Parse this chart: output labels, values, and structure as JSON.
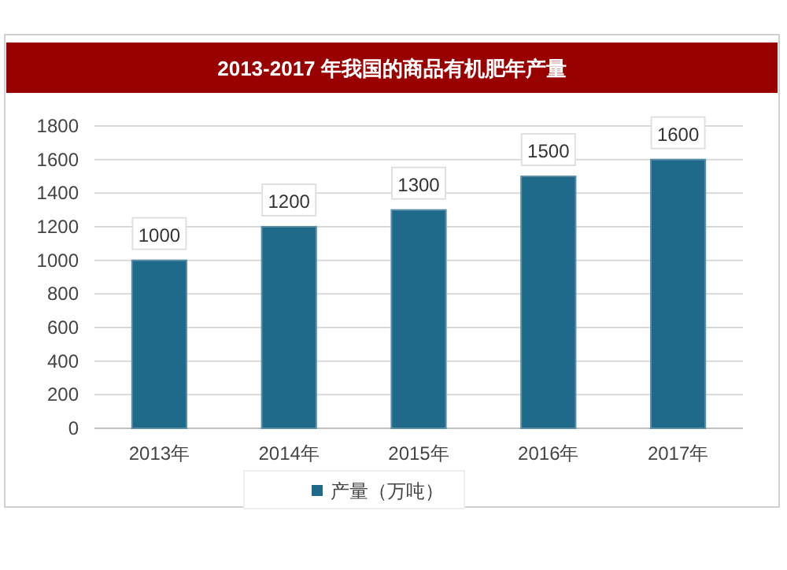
{
  "chart_data": {
    "type": "bar",
    "title": "2013-2017 年我国的商品有机肥年产量",
    "categories": [
      "2013年",
      "2014年",
      "2015年",
      "2016年",
      "2017年"
    ],
    "series": [
      {
        "name": "产量（万吨）",
        "color": "#1f6a8a",
        "values": [
          1000,
          1200,
          1300,
          1500,
          1600
        ]
      }
    ],
    "ylim": [
      0,
      1800
    ],
    "yticks": [
      0,
      200,
      400,
      600,
      800,
      1000,
      1200,
      1400,
      1600,
      1800
    ],
    "grid": "y",
    "legend": "bottom",
    "data_labels": true
  }
}
